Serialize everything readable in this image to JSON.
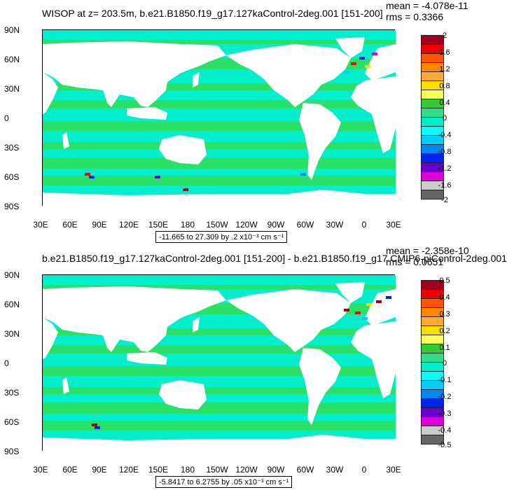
{
  "panels": [
    {
      "title": "WISOP at z= 203.5m, b.e21.B1850.f19_g17.127kaControl-2deg.001 [151-200]",
      "stats": {
        "mean": "mean = -4.078e-11",
        "rms": "rms = 0.3366"
      },
      "range_text": "-11.665 to 27.309 by .2 x10⁻³ cm s⁻¹",
      "legend_labels": [
        "2",
        "1.6",
        "1.2",
        "0.8",
        "0.4",
        "0",
        "-0.4",
        "-0.8",
        "-1.2",
        "-1.6",
        "-2"
      ]
    },
    {
      "title": "b.e21.B1850.f19_g17.127kaControl-2deg.001 [151-200] - b.e21.B1850.f19_g17.CMIP6-piControl-2deg.001",
      "stats": {
        "mean": "mean = -2.358e-10",
        "rms": "rms = 0.0651"
      },
      "range_text": "-5.8417 to 6.2755 by .05 x10⁻³ cm s⁻¹",
      "legend_labels": [
        "0.5",
        "0.4",
        "0.3",
        "0.2",
        "0.1",
        "0",
        "-0.1",
        "-0.2",
        "-0.3",
        "-0.4",
        "-0.5"
      ]
    }
  ],
  "axes": {
    "y_ticks": [
      "90N",
      "60N",
      "30N",
      "0",
      "30S",
      "60S",
      "90S"
    ],
    "x_ticks": [
      "30E",
      "60E",
      "90E",
      "120E",
      "150E",
      "180",
      "150W",
      "120W",
      "90W",
      "60W",
      "30W",
      "0",
      "30E"
    ]
  },
  "colors": {
    "ocean_dominant": "#00eecc",
    "ocean_secondary": "#33dd55",
    "land": "#ffffff",
    "colorbar": [
      "#a00020",
      "#ee0000",
      "#ff5500",
      "#ff8800",
      "#ffaa33",
      "#ffdd00",
      "#ffff55",
      "#33cc33",
      "#33dd88",
      "#00eecc",
      "#00ffff",
      "#00ccff",
      "#0088ee",
      "#0022ee",
      "#6600cc",
      "#dd00dd",
      "#cccccc",
      "#666666"
    ]
  }
}
